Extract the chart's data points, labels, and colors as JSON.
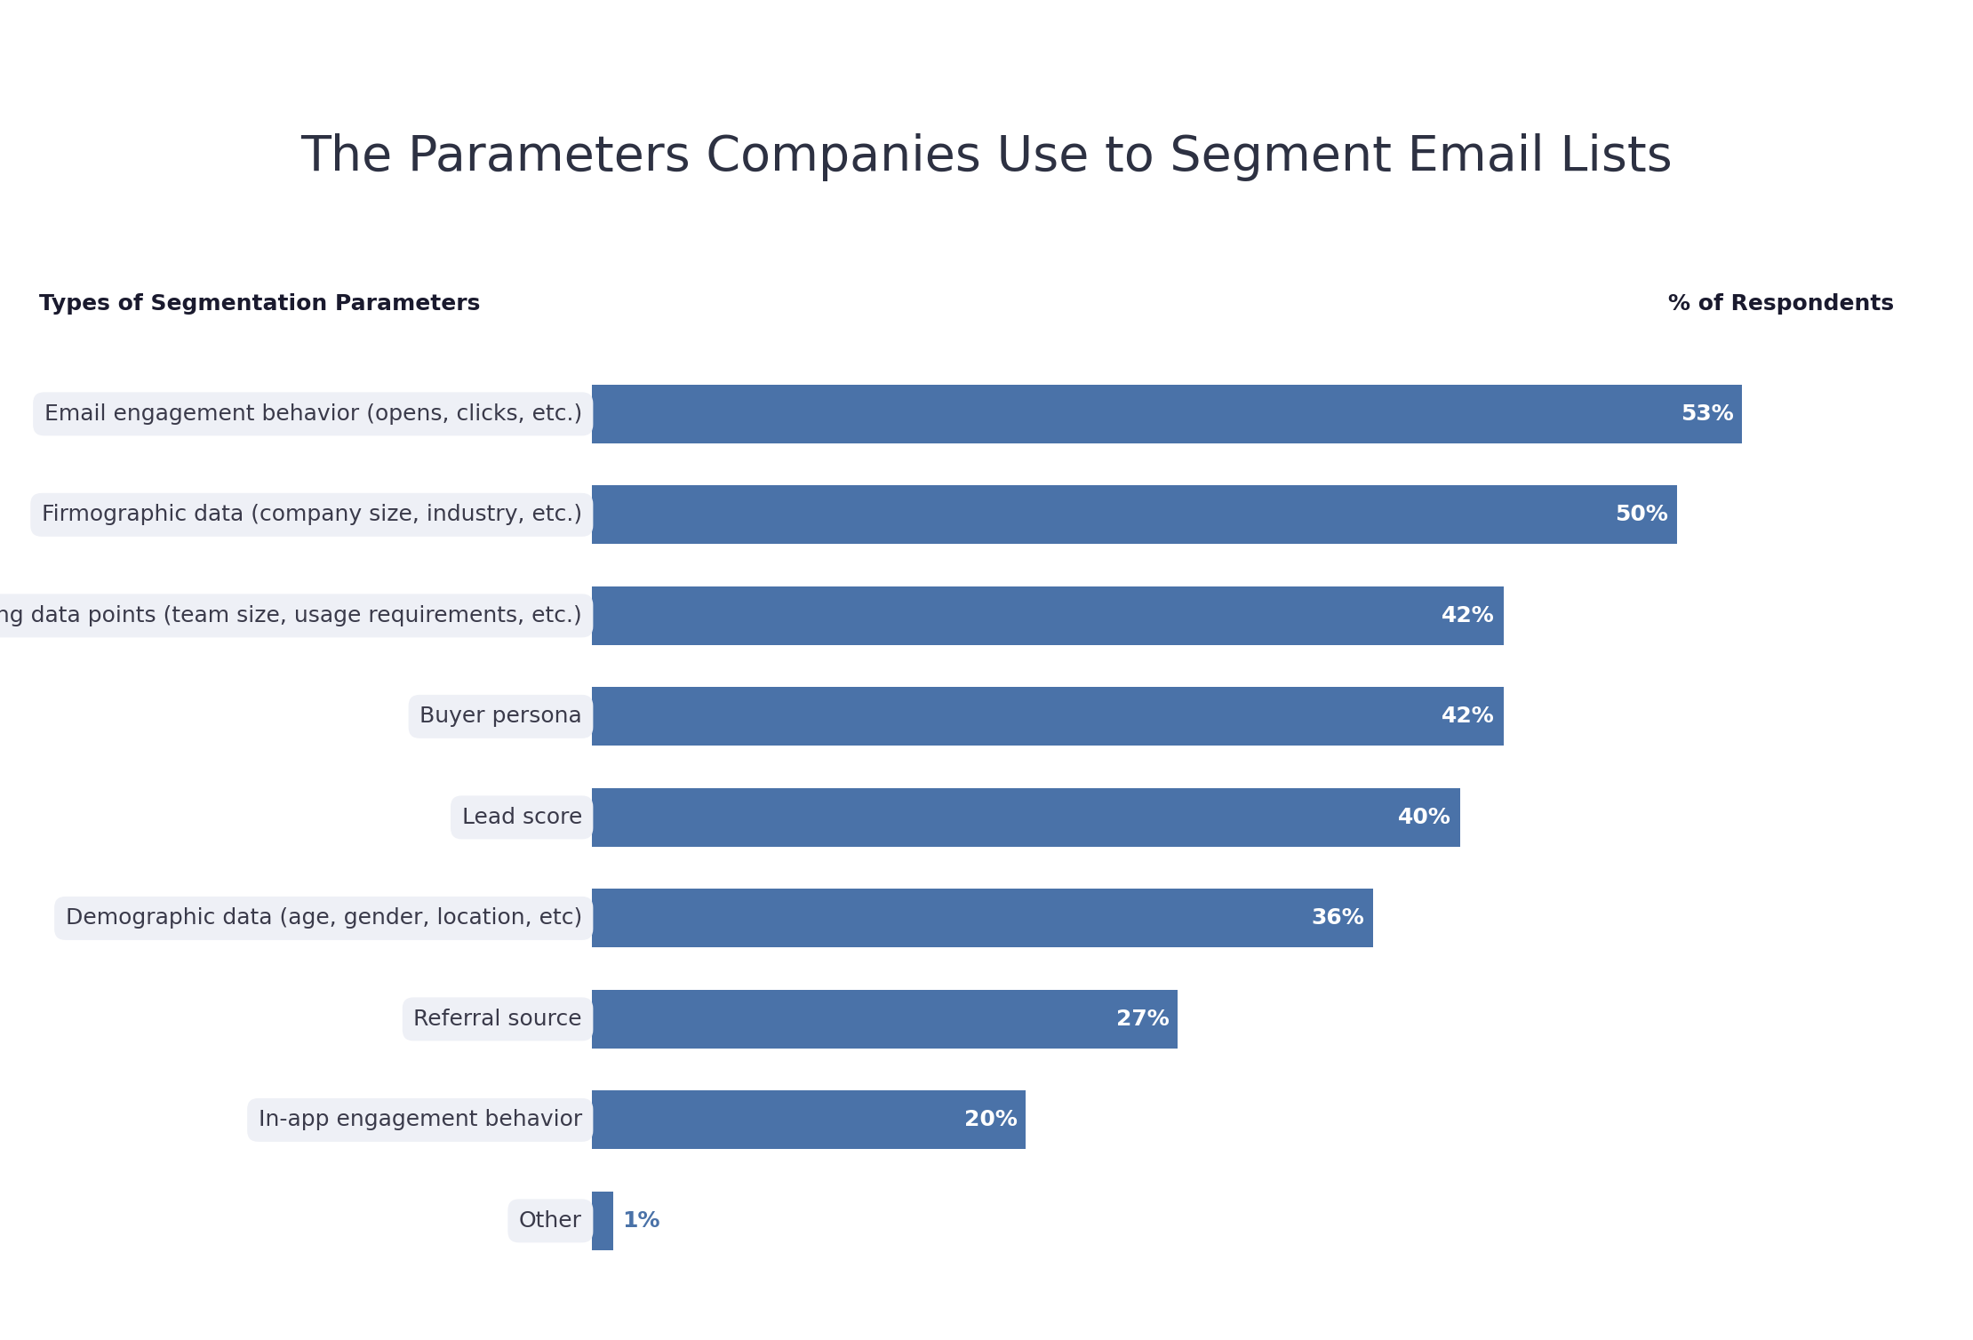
{
  "title": "The Parameters Companies Use to Segment Email Lists",
  "col_label_left": "Types of Segmentation Parameters",
  "col_label_right": "% of Respondents",
  "categories": [
    "Email engagement behavior (opens, clicks, etc.)",
    "Firmographic data (company size, industry, etc.)",
    "Sales-qualifying data points (team size, usage requirements, etc.)",
    "Buyer persona",
    "Lead score",
    "Demographic data (age, gender, location, etc)",
    "Referral source",
    "In-app engagement behavior",
    "Other"
  ],
  "values": [
    53,
    50,
    42,
    42,
    40,
    36,
    27,
    20,
    1
  ],
  "bar_color": "#4a72a8",
  "label_bg_color": "#eef0f6",
  "background_color": "#ffffff",
  "title_color": "#2d3142",
  "label_color": "#3a3a4a",
  "value_label_color_normal": "#ffffff",
  "value_label_color_small": "#4a72a8",
  "col_header_color": "#1a1a2e",
  "bar_height": 0.58,
  "xlim": [
    0,
    60
  ],
  "title_fontsize": 40,
  "category_fontsize": 18,
  "value_fontsize": 18,
  "col_header_fontsize": 18,
  "small_bar_threshold": 5
}
